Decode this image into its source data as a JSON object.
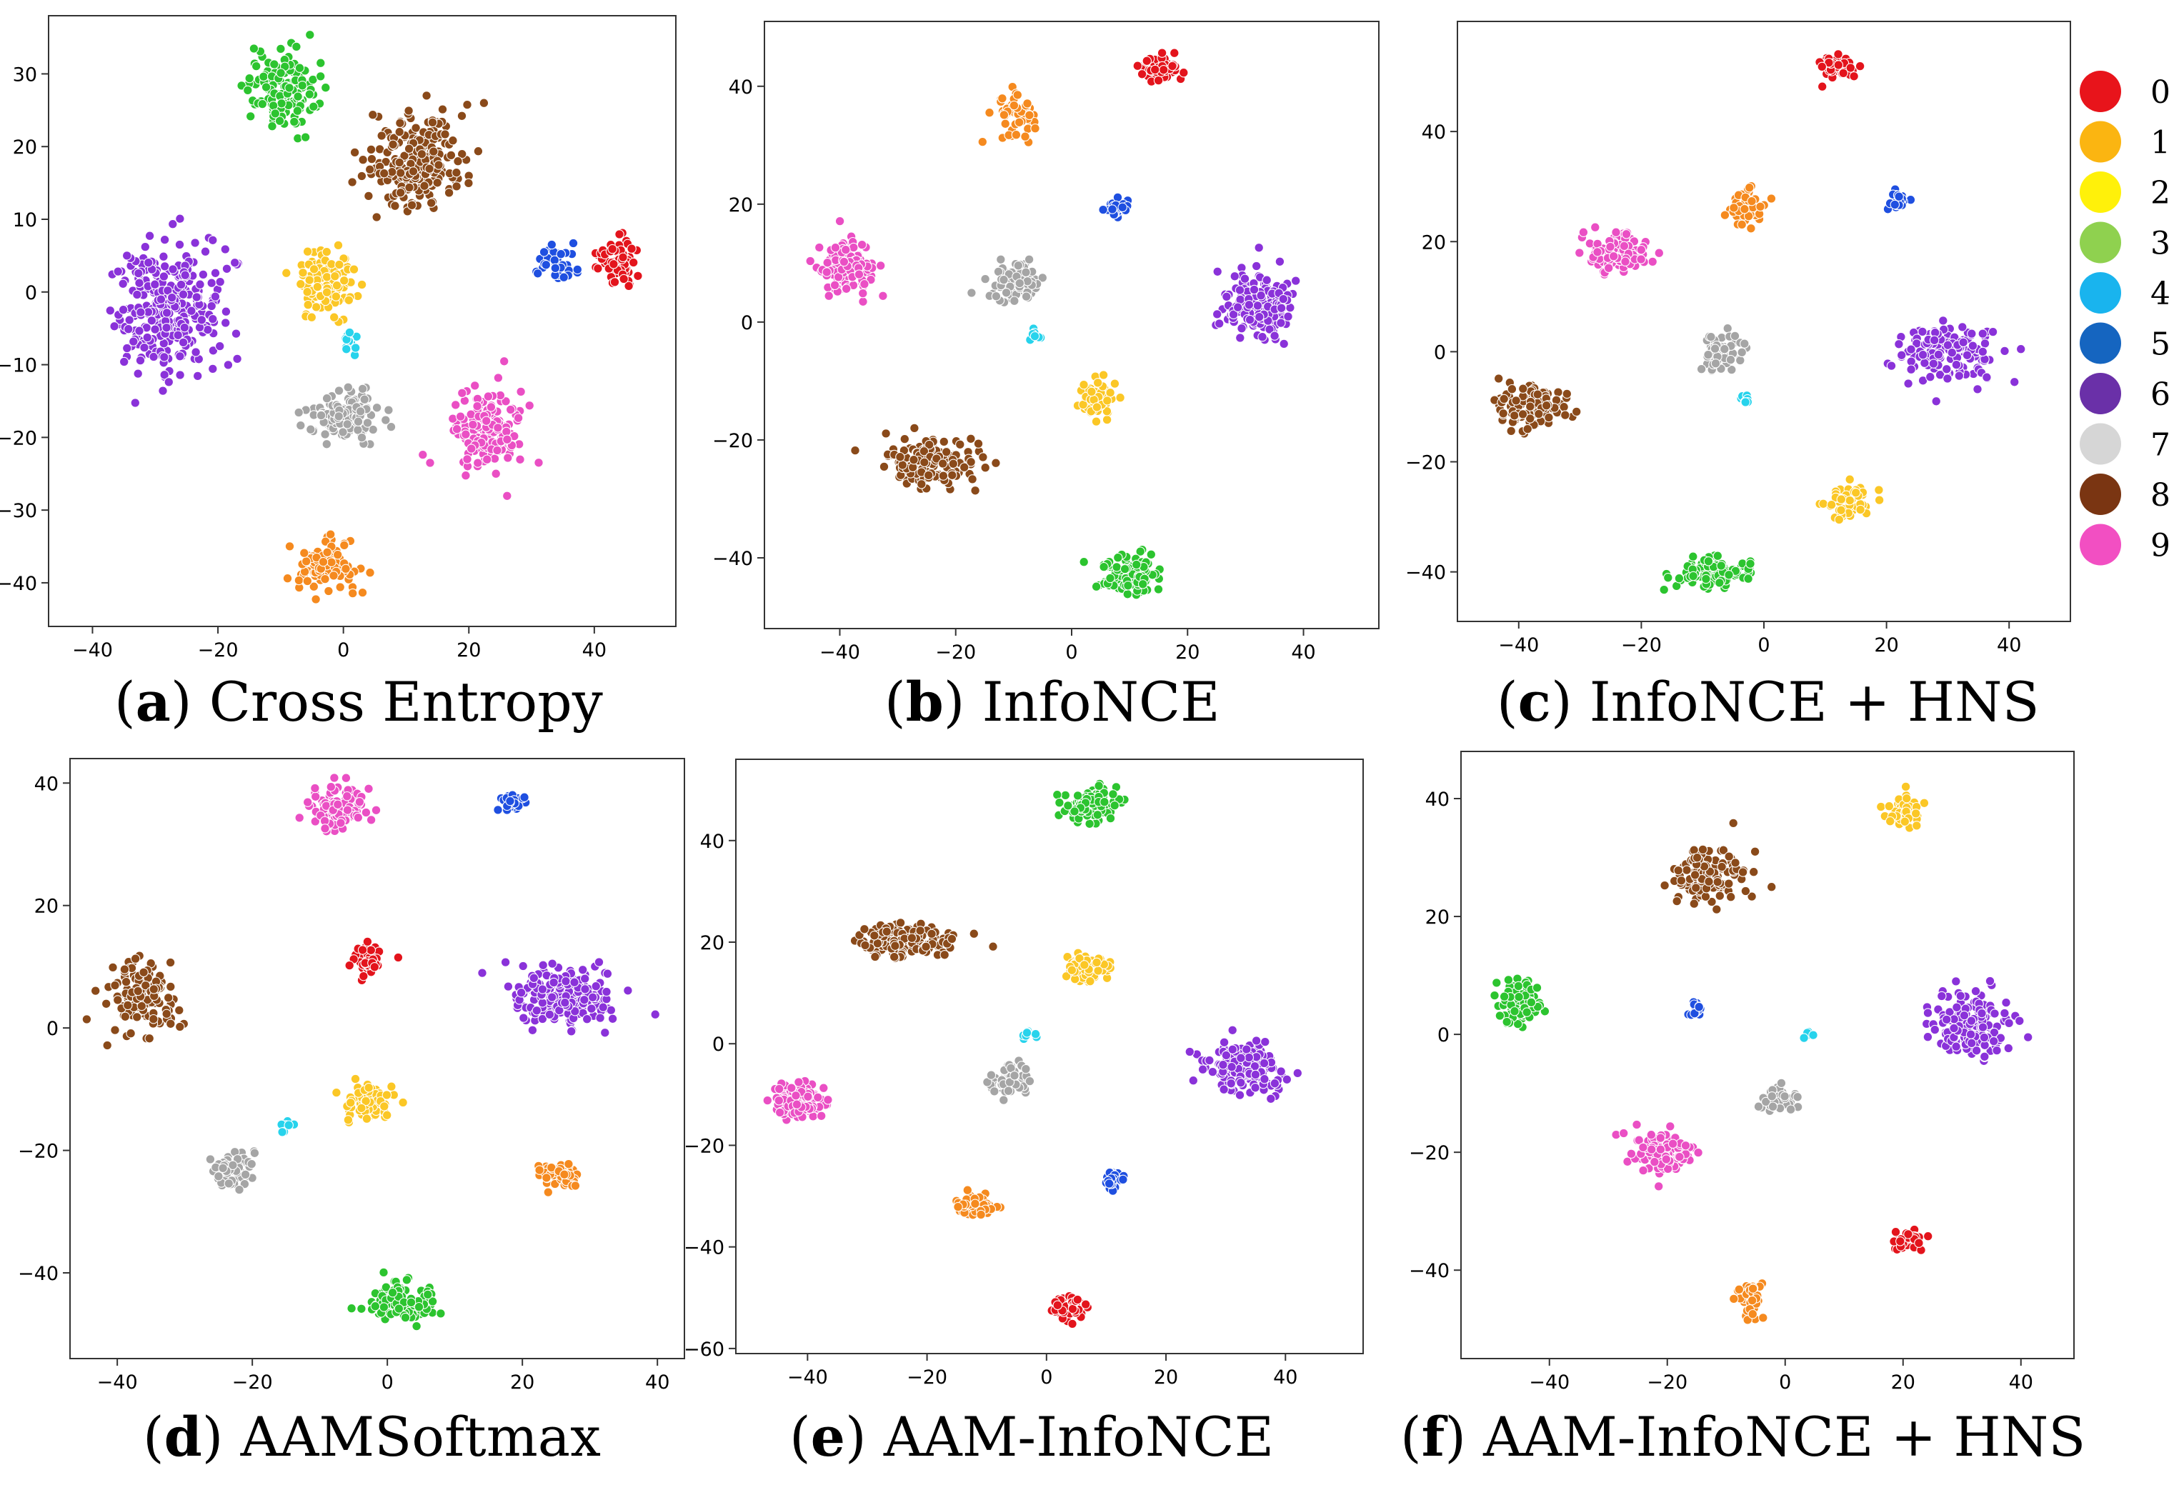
{
  "legend": {
    "items": [
      {
        "label": "0",
        "color": "#e8141b"
      },
      {
        "label": "1",
        "color": "#fbb511"
      },
      {
        "label": "2",
        "color": "#fff10a"
      },
      {
        "label": "3",
        "color": "#8fd14f"
      },
      {
        "label": "4",
        "color": "#19b4ee"
      },
      {
        "label": "5",
        "color": "#1565c0"
      },
      {
        "label": "6",
        "color": "#6a30a8"
      },
      {
        "label": "7",
        "color": "#d6d6d6"
      },
      {
        "label": "8",
        "color": "#7a3512"
      },
      {
        "label": "9",
        "color": "#f24fc2"
      }
    ]
  },
  "cluster_colors": {
    "0": "#e3141c",
    "1": "#f58a1f",
    "2": "#fbc726",
    "3": "#2cc42f",
    "4": "#27d3ec",
    "5": "#1f4fe0",
    "6": "#8a32d9",
    "7": "#a5a5a5",
    "8": "#8a4a1a",
    "9": "#ea4fc4"
  },
  "chart_data": [
    {
      "type": "scatter",
      "caption_letter": "a",
      "caption_text": "Cross Entropy",
      "xlim": [
        -47,
        53
      ],
      "ylim": [
        -46,
        38
      ],
      "xticks": [
        -40,
        -20,
        0,
        20,
        40
      ],
      "yticks": [
        -40,
        -30,
        -20,
        -10,
        0,
        10,
        20,
        30
      ],
      "clusters": [
        {
          "label": "3",
          "center": [
            -10,
            28
          ],
          "spread": [
            5,
            5
          ],
          "n": 150
        },
        {
          "label": "8",
          "center": [
            12,
            18
          ],
          "spread": [
            7,
            6
          ],
          "n": 220
        },
        {
          "label": "6",
          "center": [
            -28,
            -2
          ],
          "spread": [
            8,
            8
          ],
          "n": 300
        },
        {
          "label": "2",
          "center": [
            -3,
            1
          ],
          "spread": [
            4,
            4
          ],
          "n": 110
        },
        {
          "label": "5",
          "center": [
            34,
            4
          ],
          "spread": [
            2.5,
            2.5
          ],
          "n": 45
        },
        {
          "label": "0",
          "center": [
            44,
            4
          ],
          "spread": [
            3,
            3
          ],
          "n": 70
        },
        {
          "label": "4",
          "center": [
            1,
            -7
          ],
          "spread": [
            1.5,
            1.5
          ],
          "n": 15
        },
        {
          "label": "7",
          "center": [
            0,
            -17
          ],
          "spread": [
            5,
            3
          ],
          "n": 130
        },
        {
          "label": "9",
          "center": [
            23,
            -19
          ],
          "spread": [
            5,
            5
          ],
          "n": 170
        },
        {
          "label": "1",
          "center": [
            -3,
            -38
          ],
          "spread": [
            4,
            3
          ],
          "n": 100
        }
      ]
    },
    {
      "type": "scatter",
      "caption_letter": "b",
      "caption_text": "InfoNCE",
      "xlim": [
        -53,
        53
      ],
      "ylim": [
        -52,
        51
      ],
      "xticks": [
        -40,
        -20,
        0,
        20,
        40
      ],
      "yticks": [
        -40,
        -20,
        0,
        20,
        40
      ],
      "clusters": [
        {
          "label": "0",
          "center": [
            15,
            43
          ],
          "spread": [
            3,
            2
          ],
          "n": 70
        },
        {
          "label": "1",
          "center": [
            -10,
            35
          ],
          "spread": [
            3,
            3
          ],
          "n": 60
        },
        {
          "label": "5",
          "center": [
            8,
            19
          ],
          "spread": [
            2,
            1.5
          ],
          "n": 30
        },
        {
          "label": "9",
          "center": [
            -39,
            9
          ],
          "spread": [
            4,
            4
          ],
          "n": 120
        },
        {
          "label": "7",
          "center": [
            -10,
            7
          ],
          "spread": [
            4,
            3
          ],
          "n": 80
        },
        {
          "label": "6",
          "center": [
            32,
            3
          ],
          "spread": [
            6,
            5
          ],
          "n": 170
        },
        {
          "label": "4",
          "center": [
            -6,
            -2
          ],
          "spread": [
            1,
            1
          ],
          "n": 8
        },
        {
          "label": "2",
          "center": [
            4,
            -13
          ],
          "spread": [
            3,
            3
          ],
          "n": 80
        },
        {
          "label": "8",
          "center": [
            -24,
            -24
          ],
          "spread": [
            7,
            3.5
          ],
          "n": 160
        },
        {
          "label": "3",
          "center": [
            10,
            -43
          ],
          "spread": [
            5,
            3
          ],
          "n": 110
        }
      ]
    },
    {
      "type": "scatter",
      "caption_letter": "c",
      "caption_text": "InfoNCE + HNS",
      "xlim": [
        -50,
        50
      ],
      "ylim": [
        -49,
        60
      ],
      "xticks": [
        -40,
        -20,
        0,
        20,
        40
      ],
      "yticks": [
        -40,
        -20,
        0,
        20,
        40
      ],
      "clusters": [
        {
          "label": "0",
          "center": [
            12,
            52
          ],
          "spread": [
            3,
            2
          ],
          "n": 60
        },
        {
          "label": "1",
          "center": [
            -3,
            26
          ],
          "spread": [
            2.5,
            3
          ],
          "n": 50
        },
        {
          "label": "5",
          "center": [
            22,
            28
          ],
          "spread": [
            1.5,
            1.5
          ],
          "n": 25
        },
        {
          "label": "9",
          "center": [
            -24,
            18
          ],
          "spread": [
            4,
            3
          ],
          "n": 110
        },
        {
          "label": "7",
          "center": [
            -7,
            0
          ],
          "spread": [
            3,
            3
          ],
          "n": 60
        },
        {
          "label": "4",
          "center": [
            -3,
            -9
          ],
          "spread": [
            1,
            0.8
          ],
          "n": 8
        },
        {
          "label": "6",
          "center": [
            30,
            0
          ],
          "spread": [
            7,
            5
          ],
          "n": 140
        },
        {
          "label": "8",
          "center": [
            -38,
            -10
          ],
          "spread": [
            6,
            4
          ],
          "n": 120
        },
        {
          "label": "2",
          "center": [
            14,
            -27
          ],
          "spread": [
            3,
            3
          ],
          "n": 60
        },
        {
          "label": "3",
          "center": [
            -8,
            -40
          ],
          "spread": [
            6,
            2.5
          ],
          "n": 100
        }
      ]
    },
    {
      "type": "scatter",
      "caption_letter": "d",
      "caption_text": "AAMSoftmax",
      "xlim": [
        -47,
        44
      ],
      "ylim": [
        -54,
        44
      ],
      "xticks": [
        -40,
        -20,
        0,
        20,
        40
      ],
      "yticks": [
        -40,
        -20,
        0,
        20,
        40
      ],
      "clusters": [
        {
          "label": "9",
          "center": [
            -7,
            36
          ],
          "spread": [
            4,
            3
          ],
          "n": 120
        },
        {
          "label": "5",
          "center": [
            18,
            37
          ],
          "spread": [
            2,
            1.5
          ],
          "n": 30
        },
        {
          "label": "0",
          "center": [
            -3,
            11
          ],
          "spread": [
            2.5,
            2.5
          ],
          "n": 45
        },
        {
          "label": "6",
          "center": [
            26,
            5
          ],
          "spread": [
            7,
            4.5
          ],
          "n": 220
        },
        {
          "label": "8",
          "center": [
            -36,
            5
          ],
          "spread": [
            4.5,
            5
          ],
          "n": 150
        },
        {
          "label": "2",
          "center": [
            -3,
            -12
          ],
          "spread": [
            3,
            2.5
          ],
          "n": 80
        },
        {
          "label": "4",
          "center": [
            -15,
            -16
          ],
          "spread": [
            1,
            1
          ],
          "n": 8
        },
        {
          "label": "7",
          "center": [
            -23,
            -23
          ],
          "spread": [
            3,
            2.5
          ],
          "n": 80
        },
        {
          "label": "1",
          "center": [
            25,
            -24
          ],
          "spread": [
            3,
            2
          ],
          "n": 60
        },
        {
          "label": "3",
          "center": [
            2,
            -45
          ],
          "spread": [
            5,
            3
          ],
          "n": 140
        }
      ]
    },
    {
      "type": "scatter",
      "caption_letter": "e",
      "caption_text": "AAM-InfoNCE",
      "xlim": [
        -52,
        53
      ],
      "ylim": [
        -61,
        56
      ],
      "xticks": [
        -40,
        -20,
        0,
        20,
        40
      ],
      "yticks": [
        -60,
        -40,
        -20,
        0,
        20,
        40
      ],
      "clusters": [
        {
          "label": "3",
          "center": [
            7,
            47
          ],
          "spread": [
            4,
            3
          ],
          "n": 110
        },
        {
          "label": "8",
          "center": [
            -24,
            20
          ],
          "spread": [
            7,
            3
          ],
          "n": 150
        },
        {
          "label": "2",
          "center": [
            7,
            15
          ],
          "spread": [
            3,
            2.5
          ],
          "n": 80
        },
        {
          "label": "4",
          "center": [
            -3,
            2
          ],
          "spread": [
            1,
            1
          ],
          "n": 8
        },
        {
          "label": "9",
          "center": [
            -42,
            -11
          ],
          "spread": [
            3.5,
            3
          ],
          "n": 120
        },
        {
          "label": "7",
          "center": [
            -6,
            -7
          ],
          "spread": [
            3,
            2.5
          ],
          "n": 70
        },
        {
          "label": "6",
          "center": [
            33,
            -5
          ],
          "spread": [
            6,
            4.5
          ],
          "n": 170
        },
        {
          "label": "5",
          "center": [
            11,
            -27
          ],
          "spread": [
            1.5,
            1.5
          ],
          "n": 30
        },
        {
          "label": "1",
          "center": [
            -12,
            -32
          ],
          "spread": [
            2.5,
            2.5
          ],
          "n": 60
        },
        {
          "label": "0",
          "center": [
            4,
            -52
          ],
          "spread": [
            2.5,
            2
          ],
          "n": 60
        }
      ]
    },
    {
      "type": "scatter",
      "caption_letter": "f",
      "caption_text": "AAM-InfoNCE + HNS",
      "xlim": [
        -55,
        49
      ],
      "ylim": [
        -55,
        48
      ],
      "xticks": [
        -40,
        -20,
        0,
        20,
        40
      ],
      "yticks": [
        -40,
        -20,
        0,
        20,
        40
      ],
      "clusters": [
        {
          "label": "2",
          "center": [
            20,
            38
          ],
          "spread": [
            3,
            2.5
          ],
          "n": 60
        },
        {
          "label": "8",
          "center": [
            -13,
            27
          ],
          "spread": [
            6,
            4
          ],
          "n": 120
        },
        {
          "label": "3",
          "center": [
            -45,
            5
          ],
          "spread": [
            3.5,
            3.5
          ],
          "n": 90
        },
        {
          "label": "5",
          "center": [
            -15,
            4
          ],
          "spread": [
            1,
            1
          ],
          "n": 15
        },
        {
          "label": "4",
          "center": [
            4,
            0
          ],
          "spread": [
            0.8,
            0.6
          ],
          "n": 6
        },
        {
          "label": "6",
          "center": [
            31,
            2
          ],
          "spread": [
            6,
            5
          ],
          "n": 150
        },
        {
          "label": "7",
          "center": [
            -1,
            -11
          ],
          "spread": [
            2.5,
            2.5
          ],
          "n": 50
        },
        {
          "label": "9",
          "center": [
            -21,
            -20
          ],
          "spread": [
            4.5,
            3
          ],
          "n": 120
        },
        {
          "label": "0",
          "center": [
            21,
            -35
          ],
          "spread": [
            2,
            1.5
          ],
          "n": 40
        },
        {
          "label": "1",
          "center": [
            -6,
            -45
          ],
          "spread": [
            2,
            3
          ],
          "n": 40
        }
      ]
    }
  ]
}
